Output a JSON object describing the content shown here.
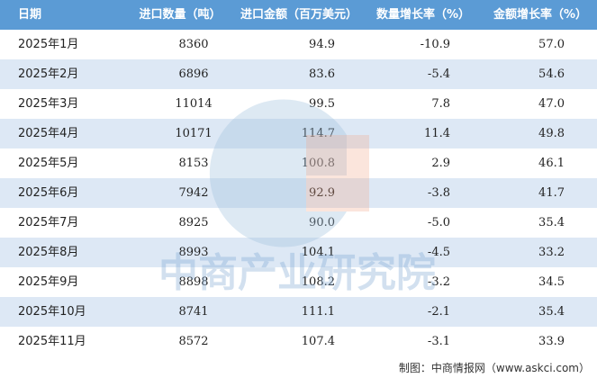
{
  "table": {
    "header": [
      "日期",
      "进口数量（吨）",
      "进口金额（百万美元）",
      "数量增长率（%）",
      "金额增长率（%）"
    ],
    "rows": [
      [
        "2025年1月",
        "8360",
        "94.9",
        "-10.9",
        "57.0"
      ],
      [
        "2025年2月",
        "6896",
        "83.6",
        "-5.4",
        "54.6"
      ],
      [
        "2025年3月",
        "11014",
        "99.5",
        "7.8",
        "47.0"
      ],
      [
        "2025年4月",
        "10171",
        "114.7",
        "11.4",
        "49.8"
      ],
      [
        "2025年5月",
        "8153",
        "100.8",
        "2.9",
        "46.1"
      ],
      [
        "2025年6月",
        "7942",
        "92.9",
        "-3.8",
        "41.7"
      ],
      [
        "2025年7月",
        "8925",
        "90.0",
        "-5.0",
        "35.4"
      ],
      [
        "2025年8月",
        "8993",
        "104.1",
        "-4.5",
        "33.2"
      ],
      [
        "2025年9月",
        "8898",
        "108.2",
        "-3.2",
        "34.5"
      ],
      [
        "2025年10月",
        "8741",
        "111.1",
        "-2.1",
        "35.4"
      ],
      [
        "2025年11月",
        "8572",
        "107.4",
        "-3.1",
        "33.9"
      ]
    ]
  },
  "watermark": "中商产业研究院",
  "footer": "制图：中商情报网（www.askci.com）"
}
